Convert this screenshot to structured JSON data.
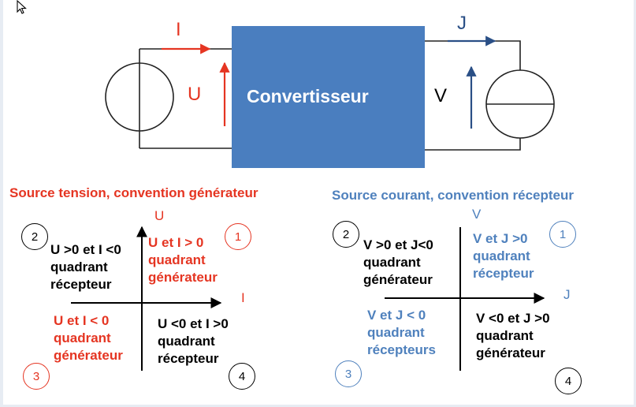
{
  "colors": {
    "red": "#e53522",
    "blue": "#4f81bd",
    "navy": "#2a4f86",
    "converter_fill": "#4a7ebf",
    "black": "#000000"
  },
  "icons": {
    "cursor": "mouse-pointer-icon"
  },
  "circuit": {
    "current_in": "I",
    "voltage_in": "U",
    "converter": "Convertisseur",
    "voltage_out": "V",
    "current_out": "J"
  },
  "left_panel": {
    "heading": "Source tension, convention générateur",
    "x_axis": "I",
    "y_axis": "U",
    "quadrants": [
      {
        "num": "1",
        "lines": [
          "U et I > 0",
          "quadrant",
          "générateur"
        ]
      },
      {
        "num": "2",
        "lines": [
          "U >0 et  I <0",
          "quadrant",
          "récepteur"
        ]
      },
      {
        "num": "3",
        "lines": [
          "U et I < 0",
          "quadrant",
          "générateur"
        ]
      },
      {
        "num": "4",
        "lines": [
          "U <0 et I >0",
          "quadrant",
          "récepteur"
        ]
      }
    ]
  },
  "right_panel": {
    "heading": "Source courant, convention récepteur",
    "x_axis": "J",
    "y_axis": "V",
    "quadrants": [
      {
        "num": "1",
        "lines": [
          "V et J >0",
          "quadrant",
          "récepteur"
        ]
      },
      {
        "num": "2",
        "lines": [
          "V >0 et  J<0",
          "quadrant",
          "générateur"
        ]
      },
      {
        "num": "3",
        "lines": [
          "V et J < 0",
          "quadrant",
          "récepteurs"
        ]
      },
      {
        "num": "4",
        "lines": [
          "V <0 et J >0",
          "quadrant",
          "générateur"
        ]
      }
    ]
  }
}
